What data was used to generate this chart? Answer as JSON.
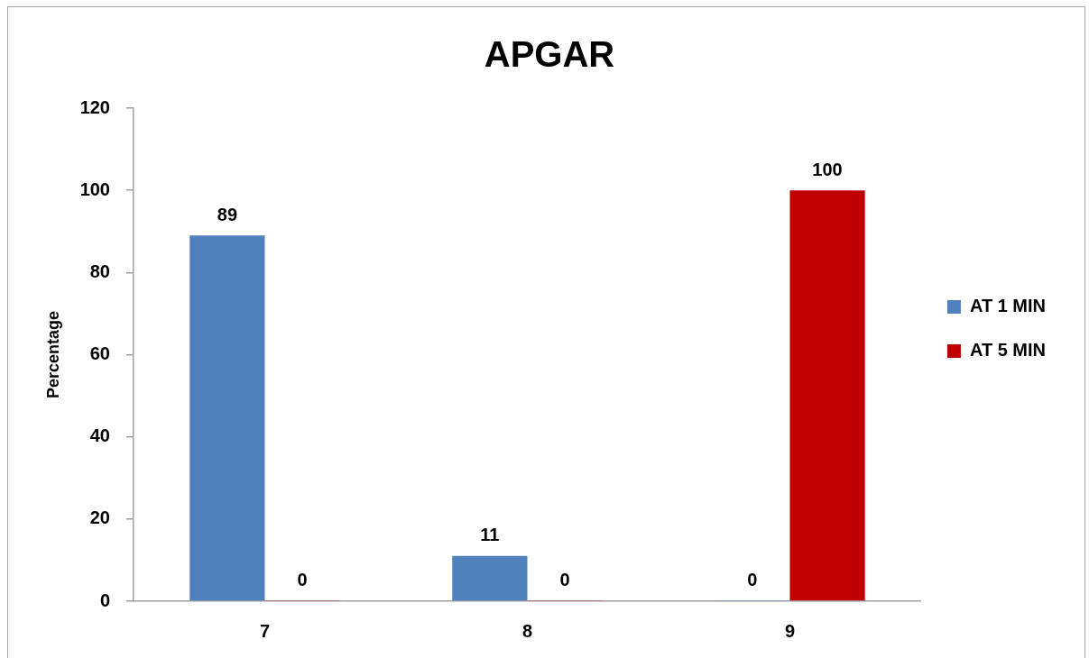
{
  "chart_data": {
    "type": "bar",
    "title": "APGAR",
    "ylabel": "Percentage",
    "categories": [
      "7",
      "8",
      "9"
    ],
    "series": [
      {
        "name": "AT 1 MIN",
        "color": "#4f81bd",
        "values": [
          89,
          11,
          0
        ]
      },
      {
        "name": "AT 5 MIN",
        "color": "#c00000",
        "values": [
          0,
          0,
          100
        ]
      }
    ],
    "ylim": [
      0,
      120
    ],
    "yticks": [
      0,
      20,
      40,
      60,
      80,
      100,
      120
    ],
    "grid": false,
    "legend": "right",
    "data_labels": true
  }
}
